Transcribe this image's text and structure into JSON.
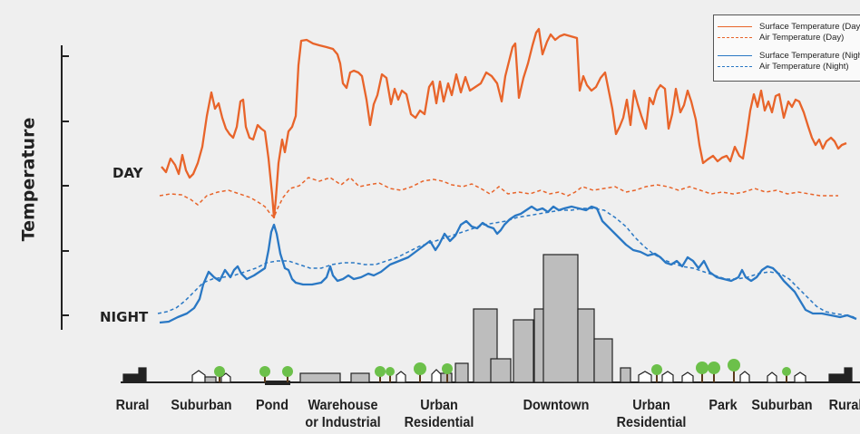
{
  "diagram": {
    "y_axis_label": "Temperature",
    "day_label": "DAY",
    "night_label": "NIGHT",
    "legend": [
      {
        "label": "Surface Temperature (Day)",
        "color": "#e8642a",
        "style": "solid"
      },
      {
        "label": "Air Temperature  (Day)",
        "color": "#e8642a",
        "style": "dashed"
      },
      {
        "label": "Surface Temperature (Night)",
        "color": "#2a78c4",
        "style": "solid"
      },
      {
        "label": "Air Temperature (Night)",
        "color": "#2a78c4",
        "style": "dashed"
      }
    ],
    "zones": [
      {
        "line1": "Rural",
        "line2": ""
      },
      {
        "line1": "Suburban",
        "line2": ""
      },
      {
        "line1": "Pond",
        "line2": ""
      },
      {
        "line1": "Warehouse",
        "line2": "or Industrial"
      },
      {
        "line1": "Urban",
        "line2": "Residential"
      },
      {
        "line1": "Downtown",
        "line2": ""
      },
      {
        "line1": "Urban",
        "line2": "Residential"
      },
      {
        "line1": "Park",
        "line2": ""
      },
      {
        "line1": "Suburban",
        "line2": ""
      },
      {
        "line1": "Rural",
        "line2": ""
      }
    ],
    "colors": {
      "day": "#e8642a",
      "night": "#2a78c4",
      "building": "#bdbdbd",
      "tree": "#6cc04a",
      "axis": "#222222"
    }
  }
}
